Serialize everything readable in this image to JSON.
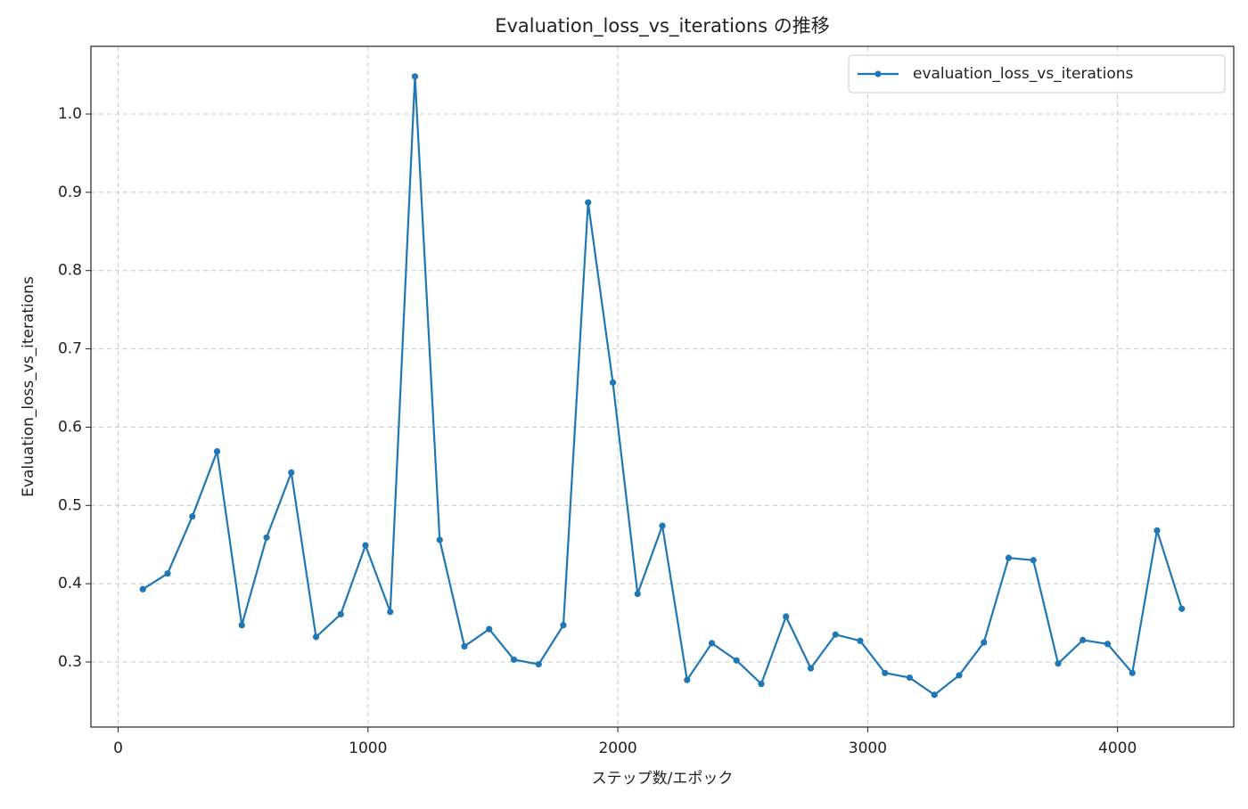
{
  "chart_data": {
    "type": "line",
    "title": "Evaluation_loss_vs_iterations の推移",
    "x_label": "ステップ数/エポック",
    "y_label": "Evaluation_loss_vs_iterations",
    "x": [
      99,
      198,
      297,
      396,
      495,
      594,
      693,
      792,
      891,
      990,
      1089,
      1188,
      1287,
      1386,
      1485,
      1584,
      1683,
      1782,
      1881,
      1980,
      2079,
      2178,
      2277,
      2376,
      2475,
      2574,
      2673,
      2772,
      2871,
      2970,
      3069,
      3168,
      3267,
      3366,
      3465,
      3564,
      3663,
      3762,
      3861,
      3960,
      4059,
      4158,
      4257
    ],
    "series": [
      {
        "name": "evaluation_loss_vs_iterations",
        "color": "#1f77b4",
        "values": [
          0.393,
          0.413,
          0.486,
          0.569,
          0.347,
          0.459,
          0.542,
          0.332,
          0.361,
          0.449,
          0.364,
          1.048,
          0.456,
          0.32,
          0.342,
          0.303,
          0.297,
          0.347,
          0.887,
          0.657,
          0.387,
          0.474,
          0.277,
          0.324,
          0.302,
          0.272,
          0.358,
          0.292,
          0.335,
          0.327,
          0.286,
          0.28,
          0.258,
          0.283,
          0.325,
          0.433,
          0.43,
          0.298,
          0.328,
          0.323,
          0.286,
          0.468,
          0.368
        ]
      }
    ],
    "xlim": [
      -108.9,
      4464.9
    ],
    "xticks": [
      0,
      1000,
      2000,
      3000,
      4000
    ],
    "ylim": [
      0.2169,
      1.0865
    ],
    "yticks": [
      0.3,
      0.4,
      0.5,
      0.6,
      0.7,
      0.8,
      0.9,
      {
        "value": 1,
        "label": "1.0"
      }
    ],
    "grid": true,
    "legend": "upper right"
  }
}
